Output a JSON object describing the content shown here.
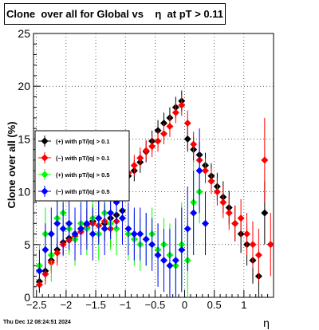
{
  "header": {
    "title": "Clone  over all for Global vs    η  at pT > 0.11",
    "timestamp": "Thu Dec 12 08:24:51 2024"
  },
  "chart_data": {
    "type": "scatter",
    "title": "Clone  over all for Global vs    η  at pT > 0.11",
    "xlabel": "η",
    "ylabel": "Clone  over all (%)",
    "xlim": [
      -2.55,
      1.5
    ],
    "ylim": [
      0,
      25
    ],
    "grid": true,
    "legend_position": "left-middle",
    "x_ticks": [
      "−2.5",
      "−2",
      "−1.5",
      "−1",
      "−0.5",
      "0",
      "0.5",
      "1"
    ],
    "y_ticks": [
      "0",
      "5",
      "10",
      "15",
      "20",
      "25"
    ],
    "series": [
      {
        "name": "(+) with pT/|q| > 0.1",
        "color": "#000000",
        "points": [
          [
            -2.45,
            1.5,
            0.8
          ],
          [
            -2.35,
            2.5,
            1.0
          ],
          [
            -2.25,
            3.5,
            1.0
          ],
          [
            -2.15,
            4.5,
            1.2
          ],
          [
            -2.05,
            5.2,
            1.1
          ],
          [
            -1.95,
            5.6,
            1.2
          ],
          [
            -1.85,
            6.0,
            1.4
          ],
          [
            -1.75,
            6.5,
            1.5
          ],
          [
            -1.65,
            6.9,
            1.5
          ],
          [
            -1.55,
            7.2,
            1.6
          ],
          [
            -1.45,
            7.5,
            1.7
          ],
          [
            -1.35,
            7.0,
            1.6
          ],
          [
            -1.25,
            7.5,
            1.7
          ],
          [
            -1.15,
            7.8,
            1.8
          ],
          [
            -1.05,
            8.2,
            1.8
          ],
          [
            -0.95,
            11.5,
            1.0
          ],
          [
            -0.85,
            12.0,
            1.0
          ],
          [
            -0.75,
            12.8,
            1.0
          ],
          [
            -0.65,
            13.8,
            1.0
          ],
          [
            -0.55,
            14.8,
            1.0
          ],
          [
            -0.45,
            15.8,
            1.0
          ],
          [
            -0.35,
            16.5,
            1.0
          ],
          [
            -0.25,
            17.0,
            1.0
          ],
          [
            -0.15,
            18.0,
            1.0
          ],
          [
            -0.05,
            18.6,
            1.0
          ],
          [
            0.05,
            15.0,
            1.2
          ],
          [
            0.15,
            14.0,
            1.2
          ],
          [
            0.25,
            13.5,
            1.2
          ],
          [
            0.35,
            12.5,
            1.2
          ],
          [
            0.45,
            11.5,
            1.2
          ],
          [
            0.55,
            10.5,
            1.3
          ],
          [
            0.65,
            9.5,
            1.5
          ],
          [
            0.75,
            8.5,
            1.6
          ],
          [
            0.85,
            7.0,
            1.7
          ],
          [
            0.95,
            6.0,
            1.8
          ],
          [
            1.05,
            5.0,
            2.0
          ],
          [
            1.15,
            3.5,
            2.2
          ],
          [
            1.25,
            2.0,
            2.5
          ],
          [
            1.35,
            8.0,
            3.0
          ]
        ]
      },
      {
        "name": "(−) with pT/|q| > 0.1",
        "color": "#ff0000",
        "points": [
          [
            -2.45,
            1.2,
            0.8
          ],
          [
            -2.35,
            2.2,
            1.0
          ],
          [
            -2.25,
            3.3,
            1.0
          ],
          [
            -2.15,
            4.2,
            1.2
          ],
          [
            -2.05,
            5.0,
            1.1
          ],
          [
            -1.95,
            5.4,
            1.2
          ],
          [
            -1.85,
            5.8,
            1.4
          ],
          [
            -1.75,
            6.2,
            1.5
          ],
          [
            -1.65,
            6.6,
            1.5
          ],
          [
            -1.55,
            7.0,
            1.6
          ],
          [
            -1.45,
            6.8,
            1.6
          ],
          [
            -1.35,
            7.2,
            1.6
          ],
          [
            -1.25,
            6.5,
            1.7
          ],
          [
            -1.15,
            7.2,
            1.7
          ],
          [
            -1.05,
            10.0,
            1.2
          ],
          [
            -0.95,
            11.8,
            1.0
          ],
          [
            -0.85,
            12.5,
            1.0
          ],
          [
            -0.75,
            13.2,
            1.0
          ],
          [
            -0.65,
            13.9,
            1.0
          ],
          [
            -0.55,
            14.3,
            1.0
          ],
          [
            -0.45,
            14.8,
            1.0
          ],
          [
            -0.35,
            15.5,
            1.0
          ],
          [
            -0.25,
            16.2,
            1.0
          ],
          [
            -0.15,
            17.5,
            1.0
          ],
          [
            -0.05,
            18.2,
            1.0
          ],
          [
            0.05,
            16.5,
            1.2
          ],
          [
            0.15,
            14.5,
            1.2
          ],
          [
            0.25,
            13.0,
            1.2
          ],
          [
            0.35,
            12.0,
            1.2
          ],
          [
            0.45,
            11.0,
            1.2
          ],
          [
            0.55,
            10.0,
            1.3
          ],
          [
            0.65,
            9.0,
            1.5
          ],
          [
            0.75,
            8.0,
            1.6
          ],
          [
            0.85,
            7.0,
            1.7
          ],
          [
            0.95,
            7.5,
            1.8
          ],
          [
            1.05,
            6.0,
            2.0
          ],
          [
            1.15,
            5.0,
            2.2
          ],
          [
            1.25,
            4.0,
            2.5
          ],
          [
            1.35,
            13.0,
            4.0
          ],
          [
            1.45,
            5.0,
            3.0
          ]
        ]
      },
      {
        "name": "(+) with pT/|q| > 0.5",
        "color": "#00ff00",
        "points": [
          [
            -2.45,
            3.0,
            2.0
          ],
          [
            -2.35,
            6.0,
            2.5
          ],
          [
            -2.25,
            4.0,
            2.5
          ],
          [
            -2.15,
            7.5,
            2.5
          ],
          [
            -2.05,
            8.0,
            2.5
          ],
          [
            -1.95,
            6.5,
            2.5
          ],
          [
            -1.85,
            5.5,
            2.5
          ],
          [
            -1.75,
            7.0,
            2.5
          ],
          [
            -1.65,
            6.5,
            2.5
          ],
          [
            -1.55,
            7.5,
            2.5
          ],
          [
            -1.45,
            6.0,
            2.5
          ],
          [
            -1.35,
            8.0,
            2.5
          ],
          [
            -1.25,
            7.0,
            2.5
          ],
          [
            -1.15,
            6.5,
            2.5
          ],
          [
            -1.05,
            7.5,
            2.5
          ],
          [
            -0.95,
            6.0,
            2.5
          ],
          [
            -0.85,
            5.5,
            2.5
          ],
          [
            -0.75,
            5.0,
            2.5
          ],
          [
            -0.65,
            5.5,
            2.5
          ],
          [
            -0.55,
            6.0,
            2.5
          ],
          [
            -0.45,
            4.5,
            2.5
          ],
          [
            -0.35,
            5.0,
            2.5
          ],
          [
            -0.25,
            4.0,
            3.0
          ],
          [
            -0.15,
            3.0,
            4.0
          ],
          [
            -0.05,
            5.0,
            4.0
          ],
          [
            0.05,
            3.5,
            4.0
          ],
          [
            0.15,
            9.0,
            4.0
          ],
          [
            0.25,
            10.0,
            3.0
          ]
        ]
      },
      {
        "name": "(−) with pT/|q| > 0.5",
        "color": "#0000ff",
        "points": [
          [
            -2.45,
            2.5,
            2.0
          ],
          [
            -2.35,
            4.5,
            2.5
          ],
          [
            -2.25,
            6.0,
            2.5
          ],
          [
            -2.15,
            7.0,
            2.5
          ],
          [
            -2.05,
            6.5,
            2.5
          ],
          [
            -1.95,
            7.0,
            2.5
          ],
          [
            -1.85,
            6.0,
            2.5
          ],
          [
            -1.75,
            6.5,
            2.5
          ],
          [
            -1.65,
            7.0,
            2.5
          ],
          [
            -1.55,
            6.0,
            2.5
          ],
          [
            -1.45,
            7.5,
            2.5
          ],
          [
            -1.35,
            6.5,
            2.5
          ],
          [
            -1.25,
            8.0,
            2.5
          ],
          [
            -1.15,
            9.0,
            2.5
          ],
          [
            -1.05,
            7.5,
            2.5
          ],
          [
            -0.95,
            6.5,
            2.5
          ],
          [
            -0.85,
            6.0,
            2.5
          ],
          [
            -0.75,
            6.0,
            2.5
          ],
          [
            -0.65,
            5.5,
            2.5
          ],
          [
            -0.55,
            5.0,
            2.5
          ],
          [
            -0.45,
            4.0,
            3.0
          ],
          [
            -0.35,
            3.5,
            3.0
          ],
          [
            -0.25,
            3.0,
            3.5
          ],
          [
            -0.15,
            3.5,
            4.0
          ],
          [
            -0.05,
            4.5,
            4.0
          ],
          [
            0.05,
            6.5,
            4.0
          ],
          [
            0.15,
            8.0,
            4.0
          ],
          [
            0.25,
            12.0,
            4.0
          ],
          [
            0.35,
            7.0,
            3.0
          ]
        ]
      }
    ]
  }
}
